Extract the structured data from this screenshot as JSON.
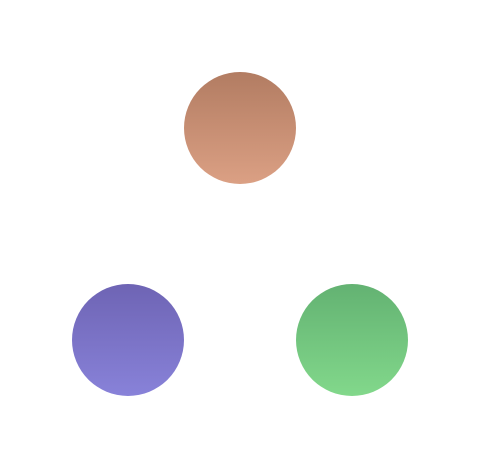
{
  "circles": [
    {
      "id": "c-top",
      "name": "orange-circle",
      "color_top": "#b27c62",
      "color_bottom": "#dba084"
    },
    {
      "id": "c-left",
      "name": "purple-circle",
      "color_top": "#6e64b4",
      "color_bottom": "#8882d9"
    },
    {
      "id": "c-right",
      "name": "green-circle",
      "color_top": "#63b272",
      "color_bottom": "#82d88b"
    }
  ]
}
